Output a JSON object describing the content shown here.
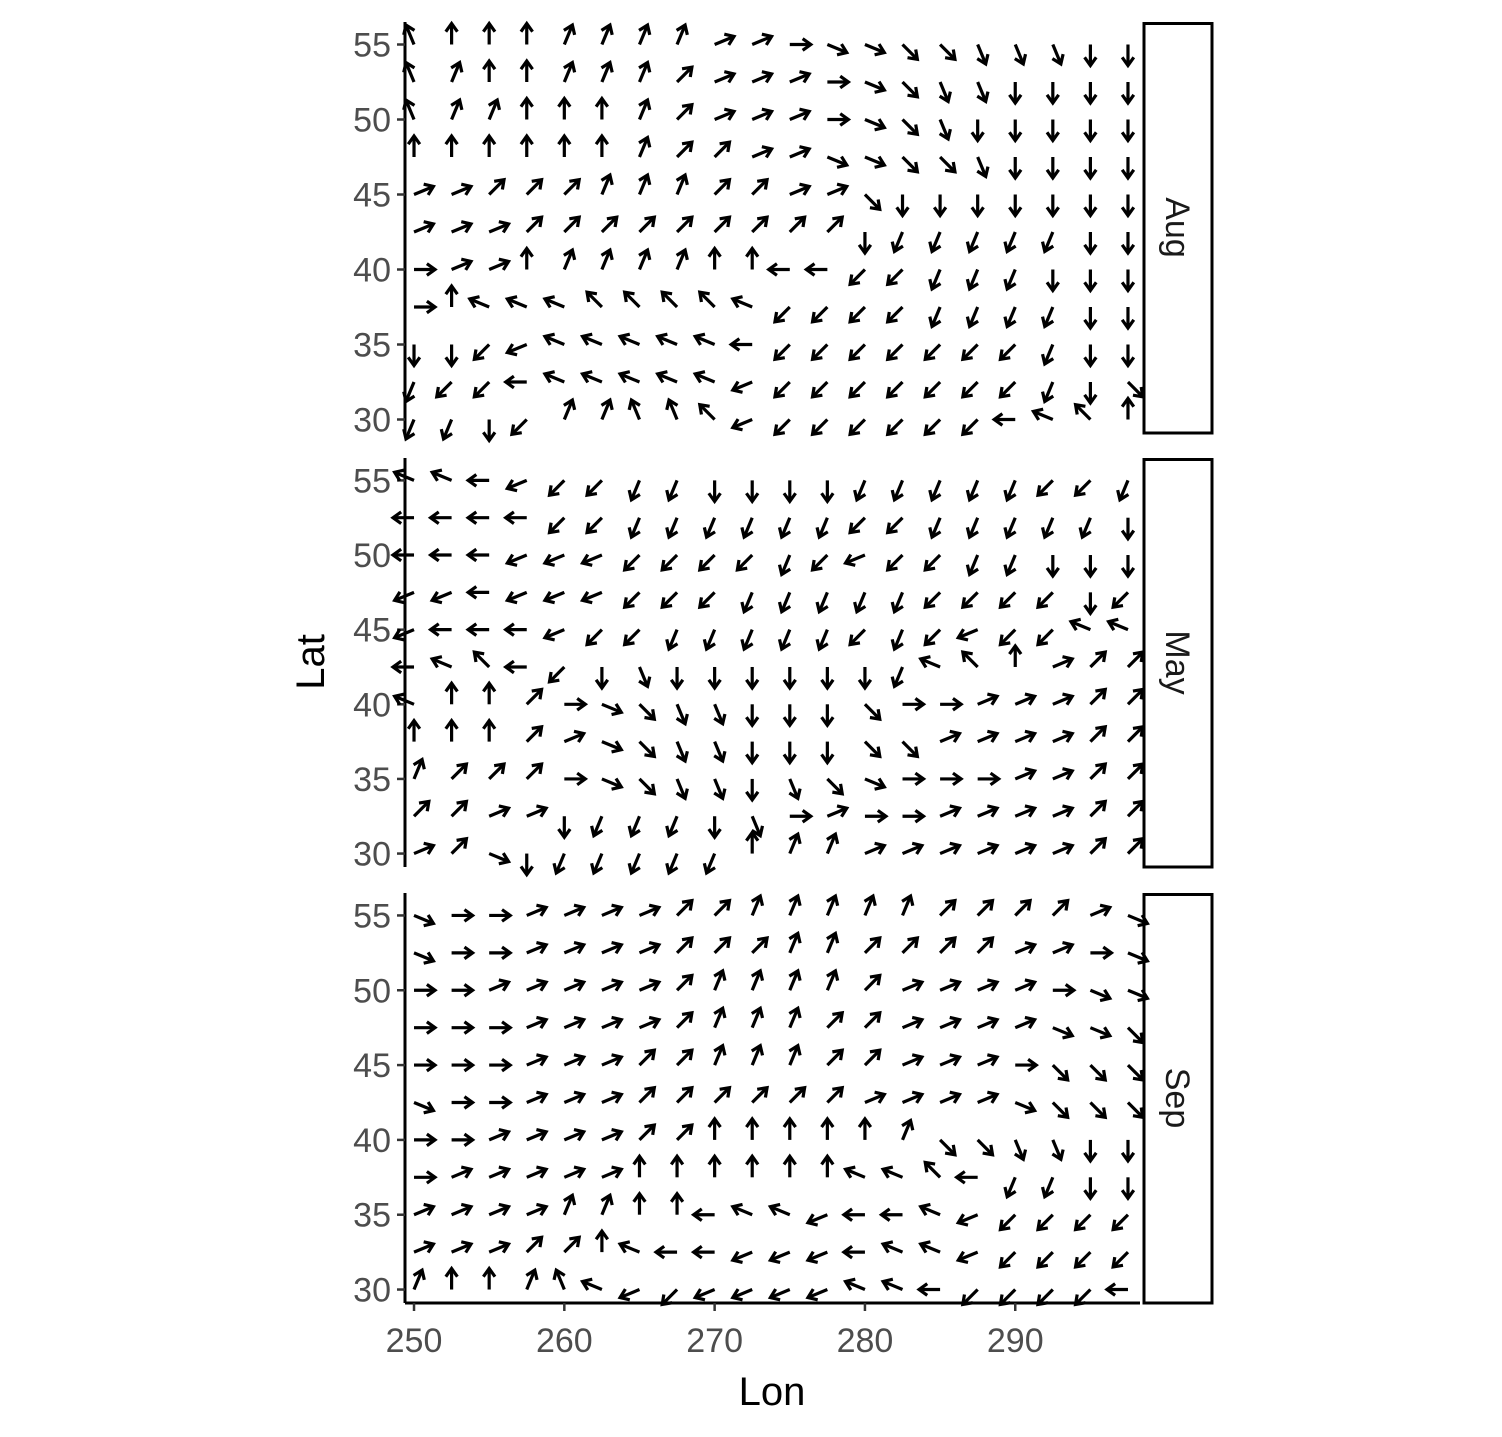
{
  "chart_data": {
    "type": "quiver",
    "xlabel": "Lon",
    "ylabel": "Lat",
    "xlim": [
      249.4,
      298.3
    ],
    "ylim": [
      29.1,
      56.5
    ],
    "x_ticks": [
      250,
      260,
      270,
      280,
      290
    ],
    "y_ticks": [
      30,
      35,
      40,
      45,
      50,
      55
    ],
    "grid_lon": [
      250,
      252.5,
      255,
      257.5,
      260,
      262.5,
      265,
      267.5,
      270,
      272.5,
      275,
      277.5,
      280,
      282.5,
      285,
      287.5,
      290,
      292.5,
      295,
      297.5
    ],
    "grid_lat": [
      55,
      52.5,
      50,
      47.5,
      45,
      42.5,
      40,
      37.5,
      35,
      32.5,
      30
    ],
    "panels": [
      {
        "strip_label": "Aug",
        "directions": [
          "NNW N N N NNE NNE NNE NNE ENE ENE E ESE ESE SE SE SSE SSE SSE S S",
          "NNW NNE N N NNE NNE NNE NE ENE ENE ENE E ESE SE SSE SSE S S S S",
          "NNW NNE NNE N N N NNE NE ENE ENE ENE E ESE SE SSE S S S S S",
          "N N N N N N NNE NE NE ENE ENE ESE ESE SE SE SSE S S S S",
          "ENE ENE NE NE NE NNE NNE NNE NE NE ENE ENE SE S S S S S S S",
          "ENE ENE ENE NE NE NE NE NE NE NE NE NE S SSW SSW SSW SSW SSW S S",
          "E ENE ENE N NNE NNE NNE NNE N N W W SW SW SSW SSW SSW S S S",
          "E N WNW WNW WNW NW NW NW NW WNW SW SW SW SW SSW SSW SSW SSW S S",
          "S S SW WSW WNW WNW WNW WNW WNW W SW SW SW SW SW SW SW SSW S S",
          "SSW SW SW W WNW WNW WNW WNW WNW WSW SW SW SW SW SW SW SW SSW S SE",
          "SSW SSW S SW NNE NNE NNW NNW NW WSW SW SW SW SW SW SW W WNW NW N"
        ]
      },
      {
        "strip_label": "May",
        "directions": [
          "WNW WNW W WSW SW SW SSW SSW S S S S SSW SSW SSW SSW SSW SW SW SSW",
          "W W W W SW SW SSW SSW SSW SSW SSW SSW SW SW SSW SSW SSW SSW SSW S",
          "W W W WSW WSW WSW SW SW SW SW SSW SW WSW SW SW SSW SSW S S S",
          "WSW WSW W WSW WSW WSW SW SW SW SSW SSW SSW SSW SSW SW SW SW SW S SW",
          "WSW W W W WSW SW SW SSW SSW SSW SSW SSW SW SSW SW WSW SW SW WNW WNW",
          "W WNW NW W SW S SSE S S S S S S SSW WNW NW N ENE NE NE",
          "WNW N N NE E ESE SE SSE SSE S S S SE E E ENE ENE ENE NE NE",
          "N N N NE ENE ESE SE SSE SSE S S S SE SE ENE ENE ENE ENE NE NE",
          "NNE NE NE NE E ESE SE SSE SSE S SSE SE ESE E E E ENE ENE NE NE",
          "NE NE ENE ENE S SSW SSW SSW S SSE E ENE E E ENE ENE ENE ENE NE NE",
          "ENE NE ESE S SSW SSW SSW SSW SSW N NNE NNE ENE ENE ENE ENE ENE ENE NE NE"
        ]
      },
      {
        "strip_label": "Sep",
        "directions": [
          "ESE E E ENE ENE ENE ENE NE NE NNE NNE NNE NNE NNE NE NE NE NE ENE ESE",
          "ESE E E ENE ENE ENE ENE NE NE NE NNE NNE NE NE NE NE ENE ENE E ESE",
          "E E ENE ENE ENE ENE ENE NE NNE NNE NNE NNE NE ENE ENE ENE ENE E ESE ESE",
          "E E E ENE ENE ENE ENE NE NNE NNE NNE NE NE ENE ENE ENE ENE ESE ESE SE",
          "E E E ENE ENE ENE NE NE NNE NNE NNE NE NE ENE ENE ENE E SE SE SE",
          "ESE E E ENE ENE ENE NE NE NE NE NE NE ENE ENE ENE ENE ESE SE SE SE",
          "E E ENE ENE ENE ENE NE NE N N N N N NNE SE SE SSE SSE S S",
          "E ENE ENE ENE ENE ENE N N N N N N WNW WNW NW W SSW SSW S S",
          "ENE ENE ENE ENE NNE NNE N N W WNW WNW WSW W W WNW WSW SW SW SW SW",
          "ENE ENE ENE NE NE N WNW W W WSW WSW WSW W WNW WNW WSW SW SW SW SW",
          "NNE N N NNE NNW WNW WSW SW WSW WSW WSW WSW WNW WNW W SW SW SW SW W"
        ]
      }
    ]
  }
}
